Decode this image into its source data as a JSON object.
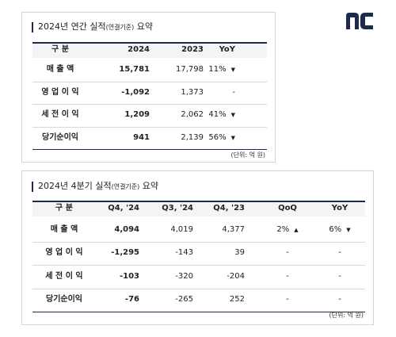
{
  "annual": {
    "title": {
      "main": "2024년 연간 실적",
      "note": "(연결기준)",
      "suffix": " 요약"
    },
    "header": [
      "구      분",
      "2024",
      "2023",
      "YoY"
    ],
    "rows": [
      [
        "매  출  액",
        "15,781",
        "17,798",
        {
          "text": "11%",
          "arrow": "▼"
        }
      ],
      [
        "영 업 이 익",
        "-1,092",
        "1,373",
        {
          "text": "-"
        }
      ],
      [
        "세 전 이 익",
        "1,209",
        "2,062",
        {
          "text": "41%",
          "arrow": "▼"
        }
      ],
      [
        "당기순이익",
        "941",
        "2,139",
        {
          "text": "56%",
          "arrow": "▼"
        }
      ]
    ],
    "unit": "(단위: 억 원)"
  },
  "quarterly": {
    "title": {
      "main": "2024년 4분기 실적",
      "note": "(연결기준)",
      "suffix": " 요약"
    },
    "header": [
      "구      분",
      "Q4, '24",
      "Q3, '24",
      "Q4, '23",
      "QoQ",
      "YoY"
    ],
    "rows": [
      [
        "매  출  액",
        "4,094",
        "4,019",
        "4,377",
        {
          "text": "2%",
          "arrow": "▲"
        },
        {
          "text": "6%",
          "arrow": "▼"
        }
      ],
      [
        "영 업 이 익",
        "-1,295",
        "-143",
        "39",
        {
          "text": "-"
        },
        {
          "text": "-"
        }
      ],
      [
        "세 전 이 익",
        "-103",
        "-320",
        "-204",
        {
          "text": "-"
        },
        {
          "text": "-"
        }
      ],
      [
        "당기순이익",
        "-76",
        "-265",
        "252",
        {
          "text": "-"
        },
        {
          "text": "-"
        }
      ]
    ],
    "unit": "(단위: 억 원)"
  }
}
